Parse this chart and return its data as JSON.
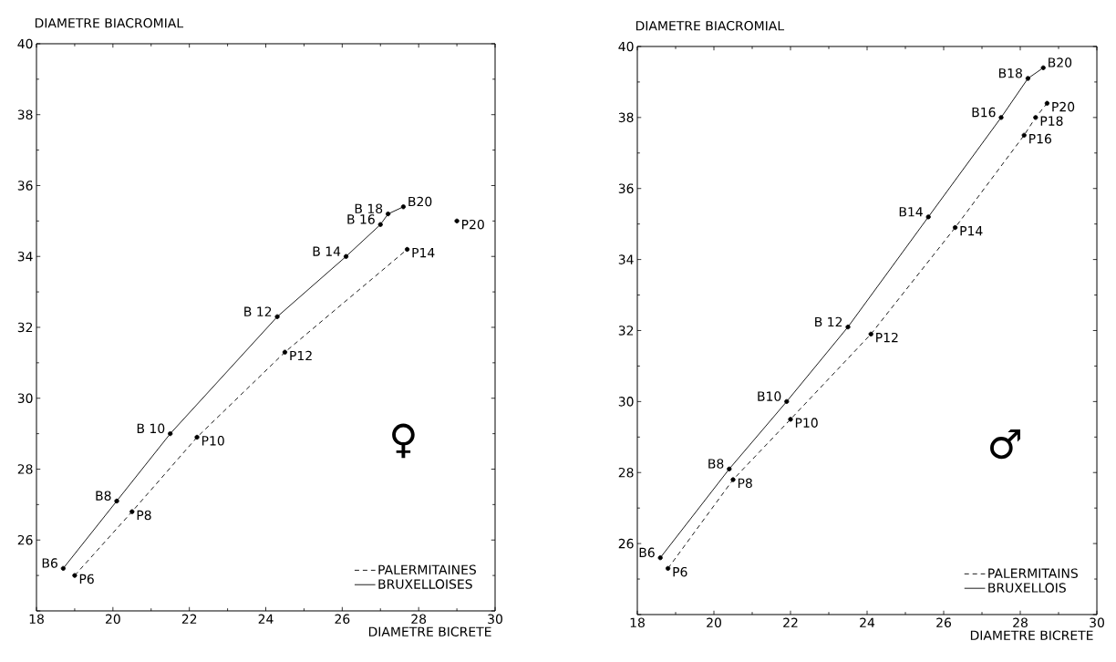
{
  "chart_data": [
    {
      "type": "line",
      "xlabel": "DIAMETRE BICRETE",
      "ylabel": "DIAMETRE BIACROMIAL",
      "xlim": [
        18,
        30
      ],
      "ylim": [
        24,
        40
      ],
      "xticks": [
        18,
        20,
        22,
        24,
        26,
        28,
        30
      ],
      "yticks": [
        {
          "value": 24,
          "label": null
        },
        26,
        28,
        30,
        32,
        34,
        36,
        38,
        40
      ],
      "grid": false,
      "legend": "bottom right",
      "marker": "circle",
      "series": [
        {
          "name": "PALERMITAINES",
          "color": "#000000",
          "line_style": "dashed",
          "x": [
            19.0,
            20.5,
            22.2,
            24.5,
            27.7
          ],
          "values": [
            25.0,
            26.8,
            28.9,
            31.3,
            34.2
          ]
        },
        {
          "name": "BRUXELLOISES",
          "color": "#000000",
          "line_style": "solid",
          "x": [
            18.7,
            20.1,
            21.5,
            24.3,
            26.1,
            27.0,
            27.2,
            27.6
          ],
          "values": [
            25.2,
            27.1,
            29.0,
            32.3,
            34.0,
            34.9,
            35.2,
            35.4
          ]
        },
        {
          "type": "scatter",
          "color": "#000000",
          "x": [
            29.0
          ],
          "values": [
            35.0
          ]
        }
      ],
      "annotations": [
        {
          "text": "B6",
          "x": 18.7,
          "y": 25.2
        },
        {
          "text": "B8",
          "x": 20.1,
          "y": 27.1
        },
        {
          "text": "B 10",
          "x": 21.5,
          "y": 29.0
        },
        {
          "text": "B 12",
          "x": 24.3,
          "y": 32.3
        },
        {
          "text": "B 14",
          "x": 26.1,
          "y": 34.0
        },
        {
          "text": "B 16",
          "x": 27.0,
          "y": 34.9
        },
        {
          "text": "B 18",
          "x": 27.2,
          "y": 35.2
        },
        {
          "text": "B20",
          "x": 27.6,
          "y": 35.4
        },
        {
          "text": "P6",
          "x": 19.0,
          "y": 25.0
        },
        {
          "text": "P8",
          "x": 20.5,
          "y": 26.8
        },
        {
          "text": "P10",
          "x": 22.2,
          "y": 28.9
        },
        {
          "text": "P12",
          "x": 24.5,
          "y": 31.3
        },
        {
          "text": "P14",
          "x": 27.7,
          "y": 34.2
        },
        {
          "text": "P20",
          "x": 29.0,
          "y": 35.0
        },
        "♀"
      ]
    },
    {
      "type": "line",
      "xlabel": "DIAMETRE BICRETE",
      "ylabel": "DIAMETRE BIACROMIAL",
      "xlim": [
        18,
        30
      ],
      "ylim": [
        24,
        40
      ],
      "xticks": [
        18,
        20,
        22,
        24,
        26,
        28,
        30
      ],
      "yticks": [
        {
          "value": 24,
          "label": null
        },
        26,
        28,
        30,
        32,
        34,
        36,
        38,
        40
      ],
      "grid": false,
      "legend": "bottom right",
      "marker": "circle",
      "series": [
        {
          "name": "PALERMITAINS",
          "color": "#000000",
          "line_style": "dashed",
          "x": [
            18.8,
            20.5,
            22.0,
            24.1,
            26.3,
            28.1,
            28.4,
            28.7
          ],
          "values": [
            25.3,
            27.8,
            29.5,
            31.9,
            34.9,
            37.5,
            38.0,
            38.4
          ]
        },
        {
          "name": "BRUXELLOIS",
          "color": "#000000",
          "line_style": "solid",
          "x": [
            18.6,
            20.4,
            21.9,
            23.5,
            25.6,
            27.5,
            28.2,
            28.6
          ],
          "values": [
            25.6,
            28.1,
            30.0,
            32.1,
            35.2,
            38.0,
            39.1,
            39.4
          ]
        }
      ],
      "annotations": [
        {
          "text": "B6",
          "x": 18.6,
          "y": 25.6
        },
        {
          "text": "B8",
          "x": 20.4,
          "y": 28.1
        },
        {
          "text": "B10",
          "x": 21.9,
          "y": 30.0
        },
        {
          "text": "B 12",
          "x": 23.5,
          "y": 32.1
        },
        {
          "text": "B14",
          "x": 25.6,
          "y": 35.2
        },
        {
          "text": "B16",
          "x": 27.5,
          "y": 38.0
        },
        {
          "text": "B18",
          "x": 28.2,
          "y": 39.1
        },
        {
          "text": "B20",
          "x": 28.6,
          "y": 39.4
        },
        {
          "text": "P6",
          "x": 18.8,
          "y": 25.3
        },
        {
          "text": "P8",
          "x": 20.5,
          "y": 27.8
        },
        {
          "text": "P10",
          "x": 22.0,
          "y": 29.5
        },
        {
          "text": "P12",
          "x": 24.1,
          "y": 31.9
        },
        {
          "text": "P14",
          "x": 26.3,
          "y": 34.9
        },
        {
          "text": "P16",
          "x": 28.1,
          "y": 37.5
        },
        {
          "text": "P18",
          "x": 28.4,
          "y": 38.0
        },
        {
          "text": "P20",
          "x": 28.7,
          "y": 38.4
        },
        "♂"
      ]
    }
  ]
}
